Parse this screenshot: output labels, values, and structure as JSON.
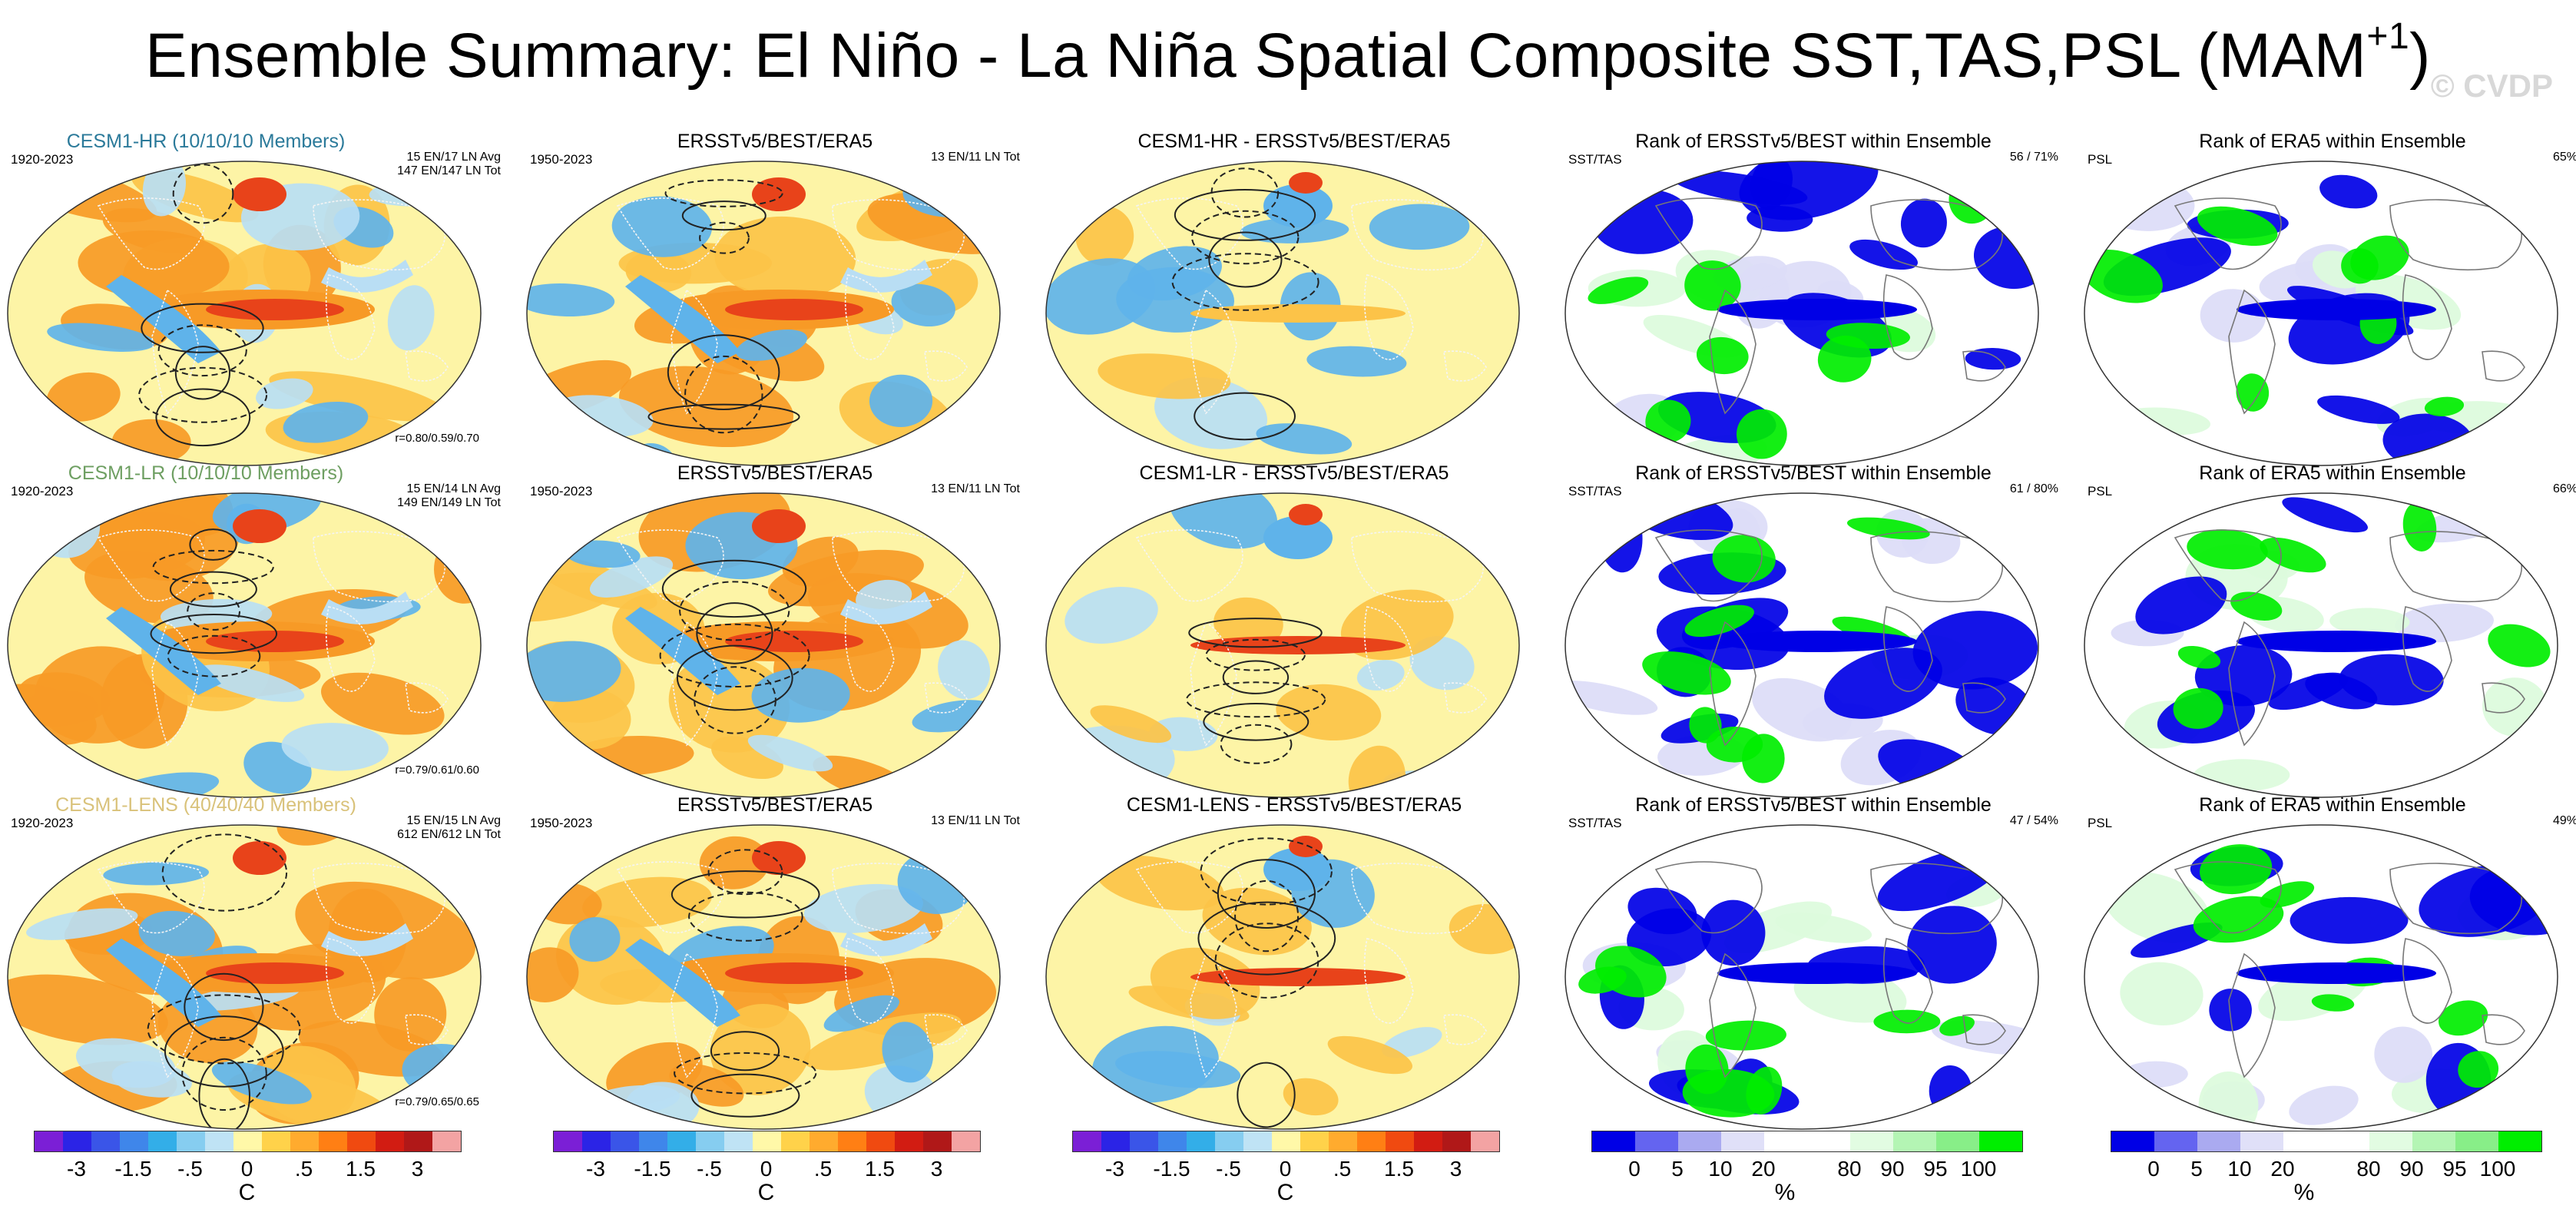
{
  "figure": {
    "title_main": "Ensemble Summary: El Niño - La Niña Spatial Composite SST,TAS,PSL (MAM",
    "title_sup": "+1",
    "title_close": ")",
    "watermark": "© CVDP"
  },
  "chart_data": {
    "type": "heatmap",
    "description_type": "map-panel-grid",
    "rows": [
      {
        "ensemble": {
          "title": "CESM1-HR (10/10/10 Members)",
          "title_color": "#2b7a9a",
          "years": "1920-2023",
          "counts_line1": "15 EN/17 LN Avg",
          "counts_line2": "147 EN/147 LN Tot",
          "pattern_corr": "r=0.80/0.59/0.70"
        },
        "obs": {
          "title": "ERSSTv5/BEST/ERA5",
          "years": "1950-2023",
          "counts": "13 EN/11 LN Tot"
        },
        "diff": {
          "title": "CESM1-HR - ERSSTv5/BEST/ERA5"
        },
        "rank_sst": {
          "title": "Rank of ERSSTv5/BEST within Ensemble",
          "left": "SST/TAS",
          "value": "56 /  71%"
        },
        "rank_psl": {
          "title": "Rank of ERA5 within Ensemble",
          "left": "PSL",
          "value": "65%"
        }
      },
      {
        "ensemble": {
          "title": "CESM1-LR (10/10/10 Members)",
          "title_color": "#6e9f62",
          "years": "1920-2023",
          "counts_line1": "15 EN/14 LN Avg",
          "counts_line2": "149 EN/149 LN Tot",
          "pattern_corr": "r=0.79/0.61/0.60"
        },
        "obs": {
          "title": "ERSSTv5/BEST/ERA5",
          "years": "1950-2023",
          "counts": "13 EN/11 LN Tot"
        },
        "diff": {
          "title": "CESM1-LR - ERSSTv5/BEST/ERA5"
        },
        "rank_sst": {
          "title": "Rank of ERSSTv5/BEST within Ensemble",
          "left": "SST/TAS",
          "value": "61 /  80%"
        },
        "rank_psl": {
          "title": "Rank of ERA5 within Ensemble",
          "left": "PSL",
          "value": "66%"
        }
      },
      {
        "ensemble": {
          "title": "CESM1-LENS (40/40/40 Members)",
          "title_color": "#d9c27a",
          "years": "1920-2023",
          "counts_line1": "15 EN/15 LN Avg",
          "counts_line2": "612 EN/612 LN Tot",
          "pattern_corr": "r=0.79/0.65/0.65"
        },
        "obs": {
          "title": "ERSSTv5/BEST/ERA5",
          "years": "1950-2023",
          "counts": "13 EN/11 LN Tot"
        },
        "diff": {
          "title": "CESM1-LENS - ERSSTv5/BEST/ERA5"
        },
        "rank_sst": {
          "title": "Rank of ERSSTv5/BEST within Ensemble",
          "left": "SST/TAS",
          "value": "47 /  54%"
        },
        "rank_psl": {
          "title": "Rank of ERA5 within Ensemble",
          "left": "PSL",
          "value": "49%"
        }
      }
    ],
    "colorbars": {
      "anomaly": {
        "colors": [
          "#7b1fd6",
          "#2b24e6",
          "#3a55e8",
          "#3f86ea",
          "#33aee8",
          "#86cdf0",
          "#bfe3f5",
          "#fff8a8",
          "#ffd24a",
          "#ffab2e",
          "#ff7f14",
          "#f04a10",
          "#d21c12",
          "#b01818",
          "#f3a3a3"
        ],
        "labels": [
          "-3",
          "-1.5",
          "-.5",
          "0",
          ".5",
          "1.5",
          "3"
        ],
        "label_boundary_index": [
          2,
          4,
          6,
          8,
          10,
          12,
          14
        ],
        "unit": "C"
      },
      "rank": {
        "colors": [
          "#0000e6",
          "#6464f0",
          "#aaaaf0",
          "#e0e0f8",
          "#ffffff",
          "#ffffff",
          "#e2fce2",
          "#b4f5b4",
          "#88ee88",
          "#00ee00"
        ],
        "labels": [
          "0",
          "5",
          "10",
          "20",
          "80",
          "90",
          "95",
          "100"
        ],
        "label_boundary_index": [
          1,
          2,
          3,
          4,
          6,
          7,
          8,
          9
        ],
        "unit": "%"
      }
    },
    "palette": {
      "warm_strong": "#e8431a",
      "warm": "#f79a26",
      "warm_light": "#fcc348",
      "neutral": "#fdf4a6",
      "cool_light": "#b9def4",
      "cool": "#5fb3ea",
      "cool_strong": "#3e78e6",
      "rank_low": "#0000e6",
      "rank_high": "#00ee00",
      "rank_mid_low": "#dcdcf7",
      "rank_mid_high": "#dcfbdc"
    }
  }
}
